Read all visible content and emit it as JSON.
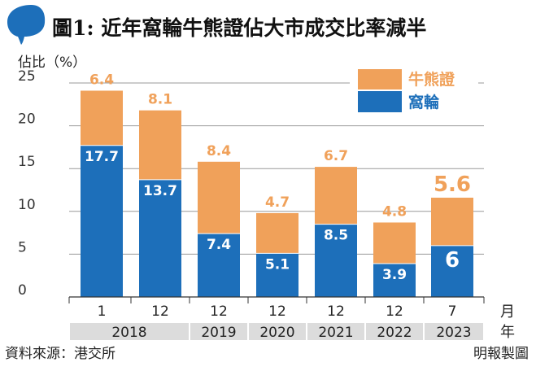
{
  "header": {
    "title": "圖1: 近年窩輪牛熊證佔大市成交比率減半"
  },
  "footer": {
    "source": "資料來源：港交所",
    "credit": "明報製圖"
  },
  "colors": {
    "warrant": "#1d6fba",
    "cbbc": "#f0a15a",
    "title_blob": "#1d6fba",
    "axis_band": "#dcdcdc",
    "grid": "#999999"
  },
  "chart_data": {
    "type": "bar",
    "stacked": true,
    "ylabel": "佔比（%）",
    "ylim": [
      0,
      25
    ],
    "yticks": [
      0,
      5,
      10,
      15,
      20,
      25
    ],
    "grid": true,
    "legend_position": "top-right",
    "categories": [
      "1",
      "12",
      "12",
      "12",
      "12",
      "12",
      "7"
    ],
    "years": [
      "2018",
      "2018",
      "2019",
      "2020",
      "2021",
      "2022",
      "2023"
    ],
    "year_groups": [
      {
        "label": "2018",
        "span": 2
      },
      {
        "label": "2019",
        "span": 1
      },
      {
        "label": "2020",
        "span": 1
      },
      {
        "label": "2021",
        "span": 1
      },
      {
        "label": "2022",
        "span": 1
      },
      {
        "label": "2023",
        "span": 1
      }
    ],
    "axis_unit_month": "月",
    "axis_unit_year": "年",
    "series": [
      {
        "name": "窩輪",
        "values": [
          17.7,
          13.7,
          7.4,
          5.1,
          8.5,
          3.9,
          6
        ],
        "labels": [
          "17.7",
          "13.7",
          "7.4",
          "5.1",
          "8.5",
          "3.9",
          "6"
        ]
      },
      {
        "name": "牛熊證",
        "values": [
          6.4,
          8.1,
          8.4,
          4.7,
          6.7,
          4.8,
          5.6
        ],
        "labels": [
          "6.4",
          "8.1",
          "8.4",
          "4.7",
          "6.7",
          "4.8",
          "5.6"
        ]
      }
    ],
    "emphasized_index": 6
  }
}
